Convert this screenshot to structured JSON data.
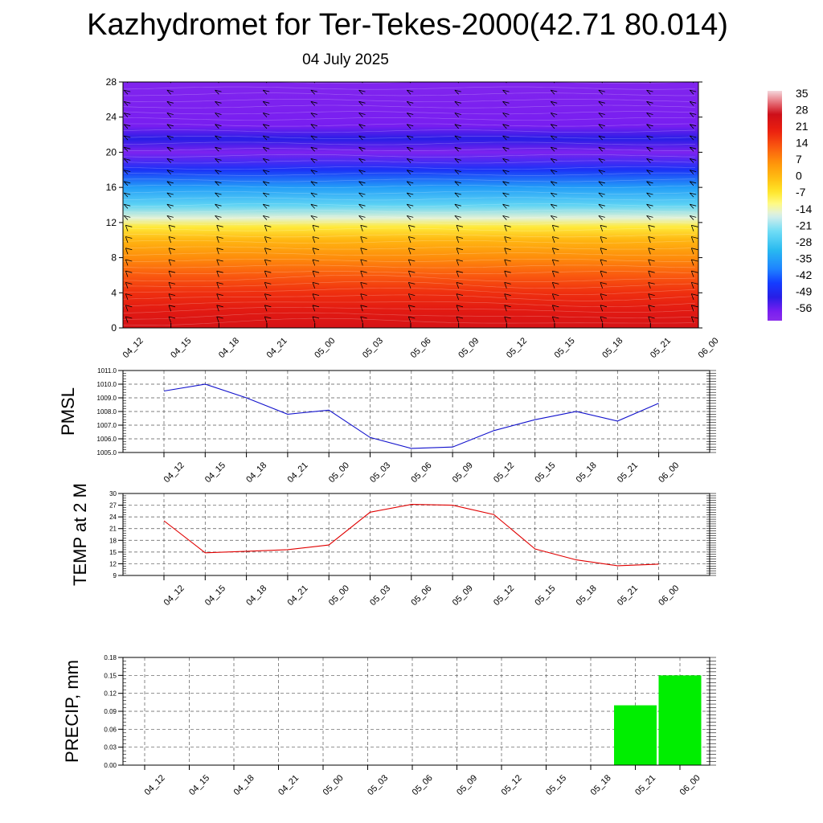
{
  "header": {
    "title": "Kazhydromet for Ter-Tekes-2000(42.71 80.014)",
    "subtitle": "04 July 2025"
  },
  "colors": {
    "pmsl_line": "#1010cc",
    "temp_line": "#e00000",
    "precip_bar": "#00ee00",
    "grid": "#555555"
  },
  "chart_data": [
    {
      "type": "heatmap",
      "title": "",
      "x_labels": [
        "04_12",
        "04_15",
        "04_18",
        "04_21",
        "05_00",
        "05_03",
        "05_06",
        "05_09",
        "05_12",
        "05_15",
        "05_18",
        "05_21",
        "06_00"
      ],
      "y_ticks": [
        0,
        4,
        8,
        12,
        16,
        20,
        24,
        28
      ],
      "ylim": [
        0,
        28
      ],
      "colorbar_labels": [
        "35",
        "28",
        "21",
        "14",
        "7",
        "0",
        "-7",
        "-14",
        "-21",
        "-28",
        "-35",
        "-42",
        "-49",
        "-56"
      ],
      "colorbar_range": [
        -60,
        38
      ],
      "temperature_by_level": [
        {
          "level": 0,
          "value": 26
        },
        {
          "level": 2,
          "value": 23
        },
        {
          "level": 4,
          "value": 19
        },
        {
          "level": 6,
          "value": 14
        },
        {
          "level": 8,
          "value": 8
        },
        {
          "level": 10,
          "value": 2
        },
        {
          "level": 11.5,
          "value": -6
        },
        {
          "level": 12.5,
          "value": -14
        },
        {
          "level": 14,
          "value": -24
        },
        {
          "level": 16,
          "value": -34
        },
        {
          "level": 18,
          "value": -46
        },
        {
          "level": 20,
          "value": -57
        },
        {
          "level": 21.5,
          "value": -50
        },
        {
          "level": 23,
          "value": -56
        },
        {
          "level": 28,
          "value": -58
        }
      ],
      "wind_barbs": "present"
    },
    {
      "type": "line",
      "ylabel": "PMSL",
      "categories": [
        "04_12",
        "04_15",
        "04_18",
        "04_21",
        "05_00",
        "05_03",
        "05_06",
        "05_09",
        "05_12",
        "05_15",
        "05_18",
        "05_21",
        "06_00"
      ],
      "values": [
        1009.5,
        1010.0,
        1009.0,
        1007.8,
        1008.1,
        1006.1,
        1005.3,
        1005.4,
        1006.6,
        1007.4,
        1008.0,
        1007.3,
        1008.6
      ],
      "ylim": [
        1005.0,
        1011.0
      ],
      "y_ticks": [
        "1005.0",
        "1006.0",
        "1007.0",
        "1008.0",
        "1009.0",
        "1010.0",
        "1011.0"
      ],
      "grid": true
    },
    {
      "type": "line",
      "ylabel": "TEMP at 2 M",
      "categories": [
        "04_12",
        "04_15",
        "04_18",
        "04_21",
        "05_00",
        "05_03",
        "05_06",
        "05_09",
        "05_12",
        "05_15",
        "05_18",
        "05_21",
        "06_00"
      ],
      "values": [
        23.0,
        14.8,
        15.2,
        15.6,
        16.8,
        25.2,
        27.2,
        27.0,
        24.6,
        15.8,
        13.0,
        11.5,
        11.9
      ],
      "ylim": [
        9,
        30
      ],
      "y_ticks": [
        "9",
        "12",
        "15",
        "18",
        "21",
        "24",
        "27",
        "30"
      ],
      "grid": true
    },
    {
      "type": "bar",
      "ylabel": "PRECIP, mm",
      "categories": [
        "04_12",
        "04_15",
        "04_18",
        "04_21",
        "05_00",
        "05_03",
        "05_06",
        "05_09",
        "05_12",
        "05_15",
        "05_18",
        "05_21",
        "06_00"
      ],
      "values": [
        0,
        0,
        0,
        0,
        0,
        0,
        0,
        0,
        0,
        0,
        0,
        0.1,
        0.15
      ],
      "ylim": [
        0,
        0.18
      ],
      "y_ticks": [
        "0.00",
        "0.03",
        "0.06",
        "0.09",
        "0.12",
        "0.15",
        "0.18"
      ],
      "grid": true
    }
  ]
}
